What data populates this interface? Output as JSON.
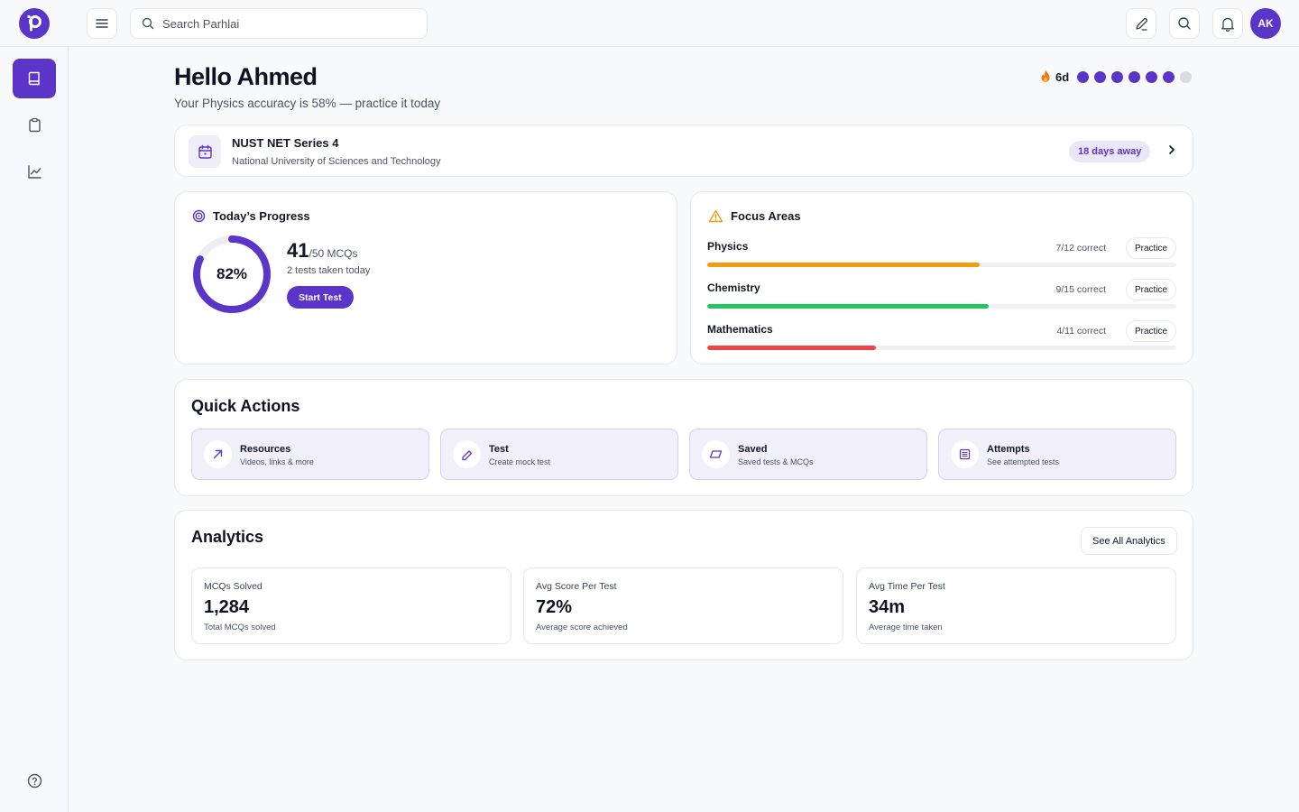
{
  "app": {
    "brand_letter": "p"
  },
  "search": {
    "placeholder": "Search Parhlai"
  },
  "user": {
    "initials": "AK"
  },
  "greeting": {
    "title": "Hello Ahmed",
    "subtitle": "Your Physics accuracy is 58% — practice it today"
  },
  "streak": {
    "icon": "fire-emoji",
    "label": "6d",
    "days_active": [
      true,
      true,
      true,
      true,
      true,
      true,
      false
    ]
  },
  "exam": {
    "title": "NUST NET Series 4",
    "subtitle": "National University of Sciences and Technology",
    "countdown": "18 days away"
  },
  "progress": {
    "heading": "Today’s Progress",
    "percent_label": "82%",
    "percent_value": 82,
    "mcqs_done": "41",
    "mcqs_total": "/50 MCQs",
    "tests_today": "2 tests taken today",
    "start_label": "Start Test"
  },
  "focus": {
    "heading": "Focus Areas",
    "practice_label": "Practice",
    "subjects": [
      {
        "name": "Physics",
        "score": "7/12 correct",
        "fraction": 0.58,
        "color": "#f29d0b"
      },
      {
        "name": "Chemistry",
        "score": "9/15 correct",
        "fraction": 0.6,
        "color": "#22c55e"
      },
      {
        "name": "Mathematics",
        "score": "4/11 correct",
        "fraction": 0.36,
        "color": "#ef4444"
      }
    ]
  },
  "quick_actions": {
    "heading": "Quick Actions",
    "items": [
      {
        "title": "Resources",
        "subtitle": "Videos, links & more",
        "icon": "arrow-up-right-icon"
      },
      {
        "title": "Test",
        "subtitle": "Create mock test",
        "icon": "pencil-icon"
      },
      {
        "title": "Saved",
        "subtitle": "Saved tests & MCQs",
        "icon": "bookmark-icon"
      },
      {
        "title": "Attempts",
        "subtitle": "See attempted tests",
        "icon": "list-icon"
      }
    ]
  },
  "analytics": {
    "heading": "Analytics",
    "see_all": "See All Analytics",
    "stats": [
      {
        "label": "MCQs Solved",
        "value": "1,284",
        "subtitle": "Total MCQs solved"
      },
      {
        "label": "Avg Score Per Test",
        "value": "72%",
        "subtitle": "Average score achieved"
      },
      {
        "label": "Avg Time Per Test",
        "value": "34m",
        "subtitle": "Average time taken"
      }
    ]
  },
  "colors": {
    "accent": "#5b35c7",
    "accent_soft": "#f1eff9",
    "border": "#e5e7eb"
  }
}
